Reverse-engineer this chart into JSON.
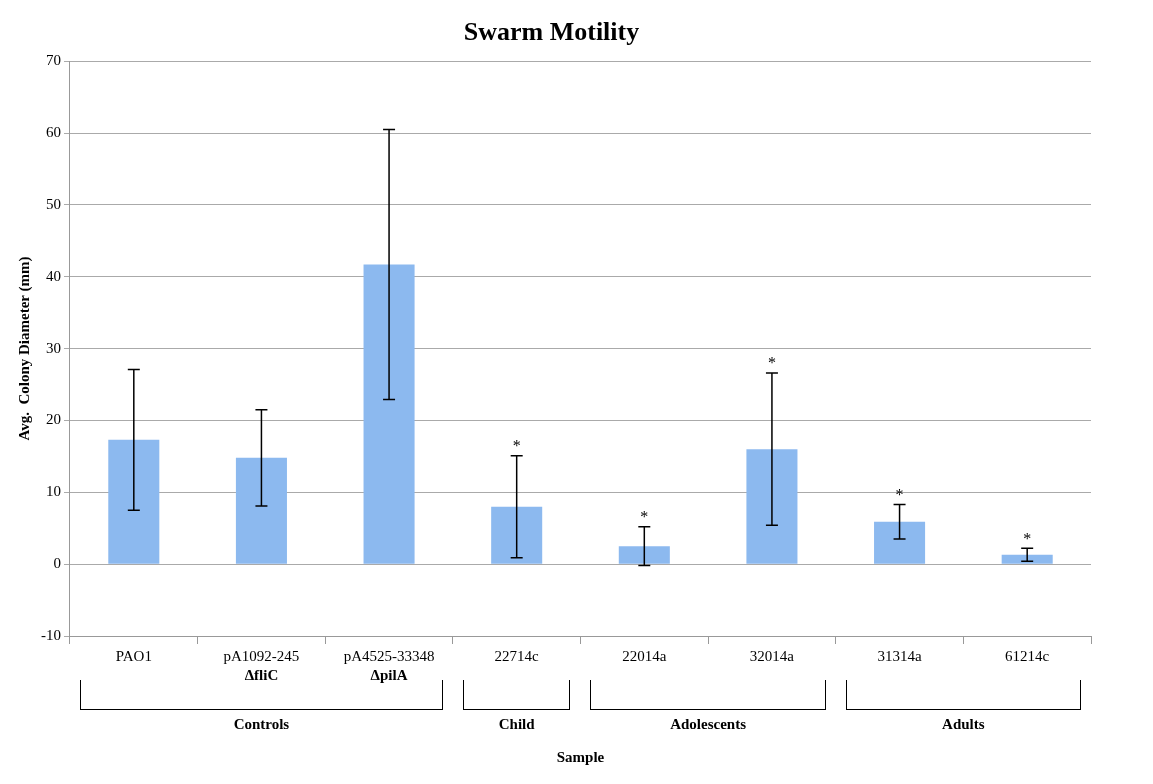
{
  "chart_data": {
    "type": "bar",
    "title": "Swarm Motility",
    "xlabel": "Sample",
    "ylabel": "Avg.  Colony Diameter (mm)",
    "categories": [
      "PAO1",
      "pA1092-245\nΔfliC",
      "pA4525-33348\nΔpilA",
      "22714c",
      "22014a",
      "32014a",
      "31314a",
      "61214c"
    ],
    "values": [
      17.3,
      14.8,
      41.7,
      8.0,
      2.5,
      16.0,
      5.9,
      1.3
    ],
    "errors": [
      9.8,
      6.7,
      18.8,
      7.1,
      2.7,
      10.6,
      2.4,
      0.9
    ],
    "color": "#8cb9ef",
    "ylim": [
      -10,
      70
    ],
    "yticks": [
      -10,
      0,
      10,
      20,
      30,
      40,
      50,
      60,
      70
    ],
    "grid": "y",
    "annotations": [
      {
        "text": "*",
        "x": "22714c",
        "y": 15.1
      },
      {
        "text": "*",
        "x": "22014a",
        "y": 5.2
      },
      {
        "text": "*",
        "x": "32014a",
        "y": 26.6
      },
      {
        "text": "*",
        "x": "31314a",
        "y": 8.3
      },
      {
        "text": "*",
        "x": "61214c",
        "y": 2.2
      },
      "Controls",
      "Child",
      "Adolescents",
      "Adults"
    ]
  }
}
